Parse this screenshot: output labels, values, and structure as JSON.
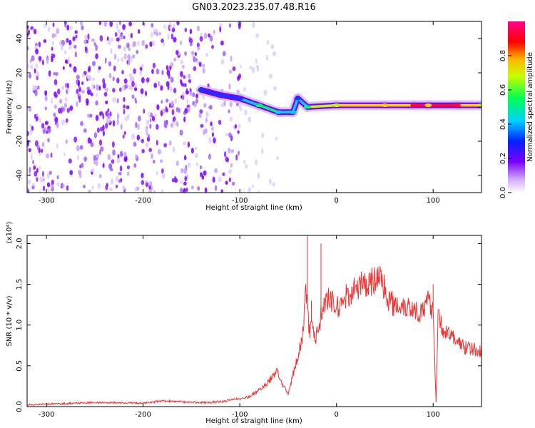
{
  "title": "GN03.2023.235.07.48.R16",
  "chart_data": [
    {
      "type": "heatmap",
      "xlabel": "Height of straight line (km)",
      "ylabel": "Frequency (Hz)",
      "xlim": [
        -320,
        150
      ],
      "ylim": [
        -50,
        50
      ],
      "xticks": [
        -300,
        -200,
        -100,
        0,
        100
      ],
      "yticks": [
        -40,
        -20,
        0,
        20,
        40
      ],
      "grid": false,
      "colorbar": {
        "label": "Normalized spectral amplitude",
        "range": [
          0,
          1
        ],
        "ticks": [
          "0.0",
          "0.2",
          "0.4",
          "0.6",
          "0.8"
        ],
        "colormap": [
          "#e5d5f8",
          "#7b00ff",
          "#0022ff",
          "#00d2ff",
          "#00ff55",
          "#c8ff00",
          "#ffb400",
          "#ff0000",
          "#ff0090"
        ]
      },
      "noise_region_end_km": -100,
      "signal_track": [
        {
          "x": -140,
          "y": 10,
          "amp": 0.35
        },
        {
          "x": -120,
          "y": 7,
          "amp": 0.3
        },
        {
          "x": -100,
          "y": 5,
          "amp": 0.4
        },
        {
          "x": -80,
          "y": 1,
          "amp": 0.55
        },
        {
          "x": -60,
          "y": -3,
          "amp": 0.5
        },
        {
          "x": -45,
          "y": -3,
          "amp": 0.45
        },
        {
          "x": -40,
          "y": 5,
          "amp": 0.4
        },
        {
          "x": -30,
          "y": 0,
          "amp": 0.6
        },
        {
          "x": 0,
          "y": 1,
          "amp": 0.7
        },
        {
          "x": 50,
          "y": 1,
          "amp": 0.75
        },
        {
          "x": 80,
          "y": 1,
          "amp": 0.9
        },
        {
          "x": 95,
          "y": 1,
          "amp": 0.85
        },
        {
          "x": 125,
          "y": 1,
          "amp": 0.9
        },
        {
          "x": 150,
          "y": 1,
          "amp": 0.7
        }
      ]
    },
    {
      "type": "line",
      "xlabel": "Height of straight line (km)",
      "ylabel": "SNR (10 * v/v)",
      "yscale_label": "(x10⁴)",
      "xlim": [
        -320,
        150
      ],
      "ylim": [
        0,
        2.1
      ],
      "xticks": [
        -300,
        -200,
        -100,
        0,
        100
      ],
      "yticks": [
        "0.0",
        "0.5",
        "1.0",
        "1.5",
        "2.0"
      ],
      "grid": false,
      "color": "#ee3333",
      "series": [
        {
          "x": [
            -320,
            -300,
            -250,
            -200,
            -180,
            -140,
            -120,
            -100,
            -90,
            -80,
            -70,
            -62,
            -55,
            -50,
            -45,
            -40,
            -35,
            -32,
            -28,
            -25,
            -22,
            -18,
            -15,
            -10,
            -5,
            0,
            10,
            20,
            30,
            40,
            45,
            50,
            55,
            60,
            70,
            80,
            90,
            95,
            100,
            103,
            105,
            110,
            120,
            130,
            140,
            150
          ],
          "y": [
            0.02,
            0.03,
            0.05,
            0.04,
            0.07,
            0.05,
            0.06,
            0.1,
            0.12,
            0.2,
            0.3,
            0.45,
            0.25,
            0.15,
            0.4,
            0.6,
            0.85,
            1.5,
            0.9,
            1.1,
            0.8,
            1.0,
            1.2,
            1.3,
            1.3,
            1.2,
            1.35,
            1.45,
            1.5,
            1.55,
            1.6,
            1.45,
            1.3,
            1.25,
            1.25,
            1.2,
            1.15,
            1.3,
            1.2,
            0.05,
            1.1,
            0.95,
            0.85,
            0.75,
            0.7,
            0.68
          ]
        }
      ],
      "spikes": [
        {
          "x": -30,
          "y": 2.1
        },
        {
          "x": -26,
          "y": 1.3
        },
        {
          "x": -16,
          "y": 2.0
        },
        {
          "x": 100,
          "y": 1.5
        },
        {
          "x": 103,
          "y": 0.05
        }
      ]
    }
  ]
}
